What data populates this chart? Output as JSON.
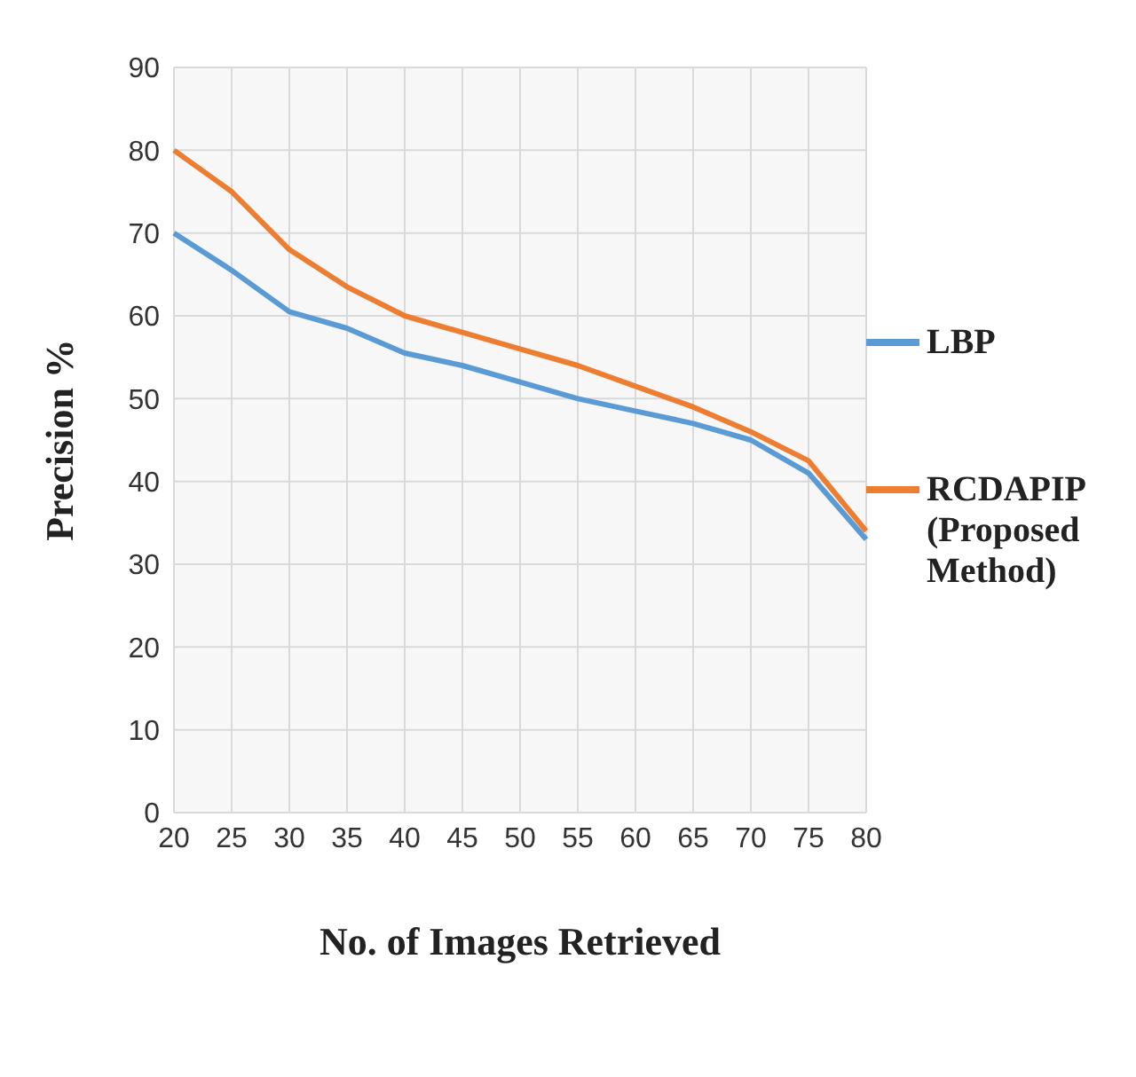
{
  "chart_data": {
    "type": "line",
    "xlabel": "No. of Images Retrieved",
    "ylabel": "Precision %",
    "categories": [
      "20",
      "25",
      "30",
      "35",
      "40",
      "45",
      "50",
      "55",
      "60",
      "65",
      "70",
      "75",
      "80"
    ],
    "series": [
      {
        "name": "LBP",
        "color": "#5b9bd5",
        "values": [
          70,
          65.5,
          60.5,
          58.5,
          55.5,
          54,
          52,
          50,
          48.5,
          47,
          45,
          41,
          33
        ]
      },
      {
        "name": "RCDAPIP(Proposed Method)",
        "color": "#ed7d31",
        "values": [
          80,
          75,
          68,
          63.5,
          60,
          58,
          56,
          54,
          51.5,
          49,
          46,
          42.5,
          34
        ]
      }
    ],
    "ylim": [
      0,
      90
    ],
    "yticks": [
      0,
      10,
      20,
      30,
      40,
      50,
      60,
      70,
      80,
      90
    ],
    "grid": true,
    "legend": "right",
    "marker": "none",
    "line_style": "solid"
  }
}
